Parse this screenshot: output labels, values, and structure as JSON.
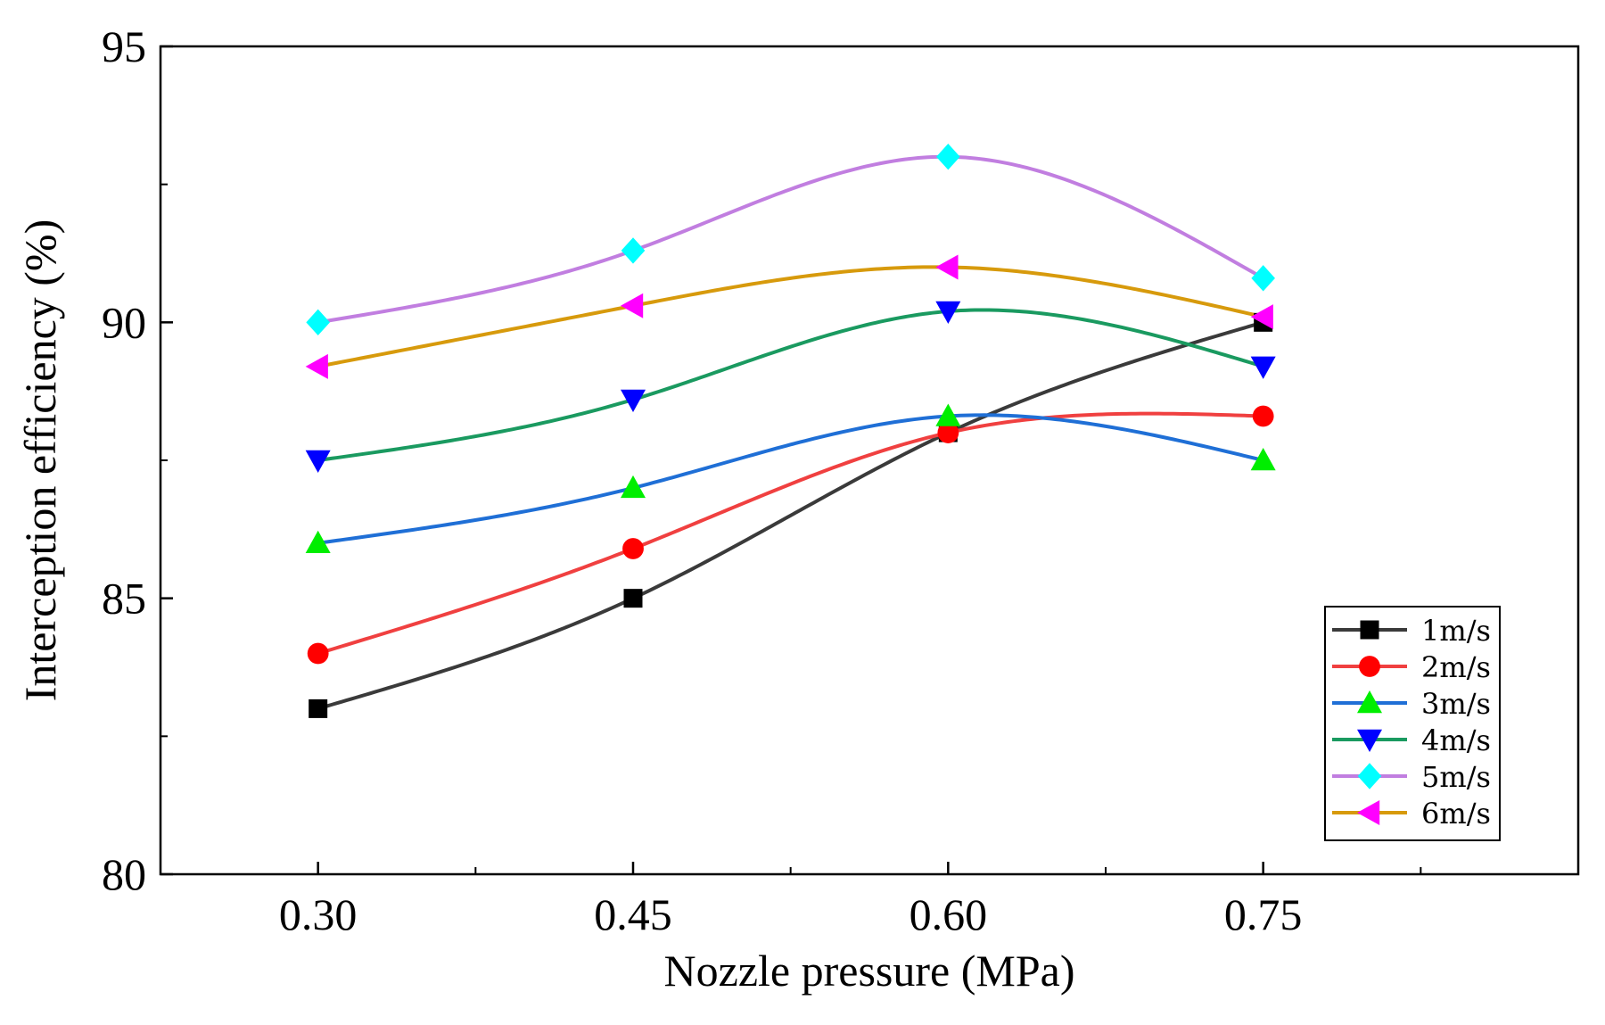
{
  "chart_data": {
    "type": "line",
    "xlabel": "Nozzle pressure (MPa)",
    "ylabel": "Interception efficiency (%)",
    "x": [
      0.3,
      0.45,
      0.6,
      0.75
    ],
    "xtick_labels": [
      "0.30",
      "0.45",
      "0.60",
      "0.75"
    ],
    "xlim": [
      0.225,
      0.9
    ],
    "ylim": [
      80,
      95
    ],
    "ytick_labels": [
      "80",
      "85",
      "90",
      "95"
    ],
    "yticks": [
      80,
      85,
      90,
      95
    ],
    "grid": false,
    "legend_position": "bottom-right",
    "series": [
      {
        "name": "1m/s",
        "color": "#3a3a3a",
        "marker": "square",
        "marker_color": "#000000",
        "values": [
          83.0,
          85.0,
          88.0,
          90.0
        ]
      },
      {
        "name": "2m/s",
        "color": "#f04040",
        "marker": "circle",
        "marker_color": "#ff0000",
        "values": [
          84.0,
          85.9,
          88.0,
          88.3
        ]
      },
      {
        "name": "3m/s",
        "color": "#1f6fd6",
        "marker": "triangle-up",
        "marker_color": "#00ee00",
        "values": [
          86.0,
          87.0,
          88.3,
          87.5
        ]
      },
      {
        "name": "4m/s",
        "color": "#1a9a60",
        "marker": "triangle-down",
        "marker_color": "#0000ff",
        "values": [
          87.5,
          88.6,
          90.2,
          89.2
        ]
      },
      {
        "name": "5m/s",
        "color": "#c17ee0",
        "marker": "diamond",
        "marker_color": "#00ffff",
        "values": [
          90.0,
          91.3,
          93.0,
          90.8
        ]
      },
      {
        "name": "6m/s",
        "color": "#d79a0c",
        "marker": "triangle-left",
        "marker_color": "#ff00ff",
        "values": [
          89.2,
          90.3,
          91.0,
          90.1
        ]
      }
    ]
  }
}
